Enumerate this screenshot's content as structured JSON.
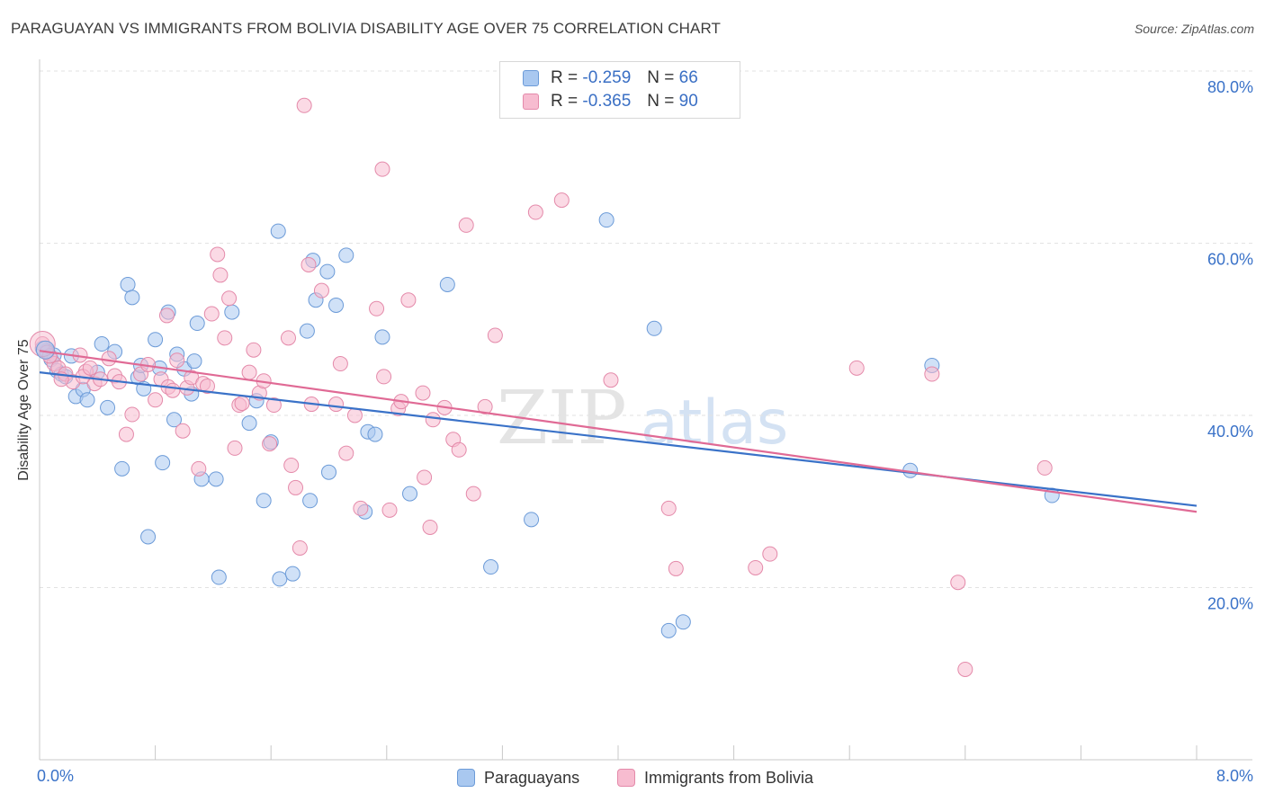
{
  "title": "PARAGUAYAN VS IMMIGRANTS FROM BOLIVIA DISABILITY AGE OVER 75 CORRELATION CHART",
  "source": "Source: ZipAtlas.com",
  "watermark": {
    "zip": "ZIP",
    "atlas": "atlas"
  },
  "legend": {
    "rows": [
      {
        "r_label": "R = ",
        "r_value": "-0.259",
        "n_label": "N = ",
        "n_value": "66",
        "color": "#a9c8f0",
        "border": "#6c9bd8"
      },
      {
        "r_label": "R = ",
        "r_value": "-0.365",
        "n_label": "N = ",
        "n_value": "90",
        "color": "#f7bcd0",
        "border": "#e48aaa"
      }
    ]
  },
  "bottom_legend": {
    "paraguayans": "Paraguayans",
    "bolivia": "Immigrants from Bolivia"
  },
  "chart_data": {
    "type": "scatter",
    "title": "PARAGUAYAN VS IMMIGRANTS FROM BOLIVIA DISABILITY AGE OVER 75 CORRELATION CHART",
    "xlabel": "",
    "ylabel": "Disability Age Over 75",
    "xlim": [
      0,
      8
    ],
    "ylim": [
      0,
      80
    ],
    "x_ticks": [
      {
        "value": 0,
        "label": "0.0%"
      },
      {
        "value": 8,
        "label": "8.0%"
      }
    ],
    "y_ticks": [
      {
        "value": 20,
        "label": "20.0%"
      },
      {
        "value": 40,
        "label": "40.0%"
      },
      {
        "value": 60,
        "label": "60.0%"
      },
      {
        "value": 80,
        "label": "80.0%"
      }
    ],
    "grid": "horizontal dashed",
    "legend_position": "top-center",
    "series": [
      {
        "name": "Paraguayans",
        "color": "#6c9bd8",
        "fill": "#a9c8f0",
        "line_color": "#3a72c8",
        "trend": {
          "x": [
            0,
            8
          ],
          "y": [
            45.0,
            29.5
          ]
        },
        "points": [
          [
            0.05,
            47.5
          ],
          [
            0.08,
            46.5
          ],
          [
            0.12,
            45.2
          ],
          [
            0.15,
            44.8
          ],
          [
            0.18,
            44.5
          ],
          [
            0.22,
            46.9
          ],
          [
            0.25,
            42.2
          ],
          [
            0.3,
            43.0
          ],
          [
            0.33,
            41.8
          ],
          [
            0.4,
            45.0
          ],
          [
            0.43,
            48.3
          ],
          [
            0.47,
            40.9
          ],
          [
            0.52,
            47.4
          ],
          [
            0.57,
            33.8
          ],
          [
            0.61,
            55.2
          ],
          [
            0.64,
            53.7
          ],
          [
            0.68,
            44.4
          ],
          [
            0.7,
            45.8
          ],
          [
            0.72,
            43.1
          ],
          [
            0.75,
            25.9
          ],
          [
            0.8,
            48.8
          ],
          [
            0.83,
            45.5
          ],
          [
            0.85,
            34.5
          ],
          [
            0.89,
            52.0
          ],
          [
            0.93,
            39.5
          ],
          [
            0.95,
            47.1
          ],
          [
            1.0,
            45.4
          ],
          [
            1.05,
            42.5
          ],
          [
            1.07,
            46.3
          ],
          [
            1.09,
            50.7
          ],
          [
            1.12,
            32.6
          ],
          [
            1.22,
            32.6
          ],
          [
            1.24,
            21.2
          ],
          [
            1.33,
            52.0
          ],
          [
            1.45,
            39.1
          ],
          [
            1.5,
            41.7
          ],
          [
            1.55,
            30.1
          ],
          [
            1.6,
            36.9
          ],
          [
            1.65,
            61.4
          ],
          [
            1.66,
            21.0
          ],
          [
            1.75,
            21.6
          ],
          [
            1.85,
            49.8
          ],
          [
            1.87,
            30.1
          ],
          [
            1.89,
            58.0
          ],
          [
            1.91,
            53.4
          ],
          [
            1.99,
            56.7
          ],
          [
            2.0,
            33.4
          ],
          [
            2.05,
            52.8
          ],
          [
            2.12,
            58.6
          ],
          [
            2.25,
            28.8
          ],
          [
            2.27,
            38.1
          ],
          [
            2.32,
            37.8
          ],
          [
            2.37,
            49.1
          ],
          [
            2.56,
            30.9
          ],
          [
            2.82,
            55.2
          ],
          [
            3.12,
            22.4
          ],
          [
            3.4,
            27.9
          ],
          [
            3.92,
            62.7
          ],
          [
            4.25,
            50.1
          ],
          [
            4.35,
            15.0
          ],
          [
            4.45,
            16.0
          ],
          [
            6.17,
            45.8
          ],
          [
            6.02,
            33.6
          ],
          [
            7.0,
            30.7
          ],
          [
            0.02,
            47.8
          ],
          [
            0.1,
            47.0
          ]
        ]
      },
      {
        "name": "Immigrants from Bolivia",
        "color": "#e48aaa",
        "fill": "#f7bcd0",
        "line_color": "#e06a95",
        "trend": {
          "x": [
            0,
            8
          ],
          "y": [
            47.5,
            28.8
          ]
        },
        "points": [
          [
            0.02,
            48.3
          ],
          [
            0.05,
            47.3
          ],
          [
            0.1,
            46.0
          ],
          [
            0.13,
            45.5
          ],
          [
            0.18,
            44.8
          ],
          [
            0.23,
            43.9
          ],
          [
            0.28,
            47.0
          ],
          [
            0.32,
            45.1
          ],
          [
            0.38,
            43.7
          ],
          [
            0.42,
            44.2
          ],
          [
            0.48,
            46.6
          ],
          [
            0.52,
            44.6
          ],
          [
            0.55,
            43.9
          ],
          [
            0.6,
            37.8
          ],
          [
            0.64,
            40.1
          ],
          [
            0.7,
            44.8
          ],
          [
            0.75,
            45.9
          ],
          [
            0.8,
            41.8
          ],
          [
            0.84,
            44.2
          ],
          [
            0.88,
            51.6
          ],
          [
            0.89,
            43.3
          ],
          [
            0.92,
            42.9
          ],
          [
            0.95,
            46.4
          ],
          [
            0.99,
            38.2
          ],
          [
            1.02,
            43.2
          ],
          [
            1.05,
            44.4
          ],
          [
            1.1,
            33.8
          ],
          [
            1.13,
            43.7
          ],
          [
            1.16,
            43.4
          ],
          [
            1.19,
            51.8
          ],
          [
            1.23,
            58.7
          ],
          [
            1.25,
            56.3
          ],
          [
            1.28,
            49.0
          ],
          [
            1.31,
            53.6
          ],
          [
            1.35,
            36.2
          ],
          [
            1.38,
            41.2
          ],
          [
            1.4,
            41.4
          ],
          [
            1.45,
            45.0
          ],
          [
            1.48,
            47.6
          ],
          [
            1.52,
            42.6
          ],
          [
            1.55,
            44.0
          ],
          [
            1.59,
            36.7
          ],
          [
            1.62,
            41.2
          ],
          [
            1.72,
            49.0
          ],
          [
            1.74,
            34.2
          ],
          [
            1.77,
            31.6
          ],
          [
            1.8,
            24.6
          ],
          [
            1.83,
            76.0
          ],
          [
            1.86,
            57.5
          ],
          [
            1.88,
            41.3
          ],
          [
            1.95,
            54.5
          ],
          [
            2.05,
            41.3
          ],
          [
            2.08,
            46.0
          ],
          [
            2.12,
            35.6
          ],
          [
            2.18,
            40.0
          ],
          [
            2.22,
            29.2
          ],
          [
            2.33,
            52.4
          ],
          [
            2.37,
            68.6
          ],
          [
            2.38,
            44.5
          ],
          [
            2.42,
            29.0
          ],
          [
            2.48,
            40.8
          ],
          [
            2.5,
            41.6
          ],
          [
            2.55,
            53.4
          ],
          [
            2.65,
            42.6
          ],
          [
            2.66,
            32.8
          ],
          [
            2.7,
            27.0
          ],
          [
            2.72,
            39.5
          ],
          [
            2.8,
            40.9
          ],
          [
            2.86,
            37.2
          ],
          [
            2.9,
            36.0
          ],
          [
            2.95,
            62.1
          ],
          [
            3.0,
            30.9
          ],
          [
            3.08,
            41.0
          ],
          [
            3.15,
            49.3
          ],
          [
            3.43,
            63.6
          ],
          [
            3.61,
            65.0
          ],
          [
            3.95,
            44.1
          ],
          [
            4.35,
            29.2
          ],
          [
            4.4,
            22.2
          ],
          [
            4.95,
            22.3
          ],
          [
            5.05,
            23.9
          ],
          [
            5.65,
            45.5
          ],
          [
            6.17,
            44.8
          ],
          [
            6.35,
            20.6
          ],
          [
            6.4,
            10.5
          ],
          [
            6.95,
            33.9
          ],
          [
            0.07,
            46.9
          ],
          [
            0.15,
            44.2
          ],
          [
            0.3,
            44.5
          ],
          [
            0.35,
            45.5
          ]
        ]
      }
    ]
  }
}
